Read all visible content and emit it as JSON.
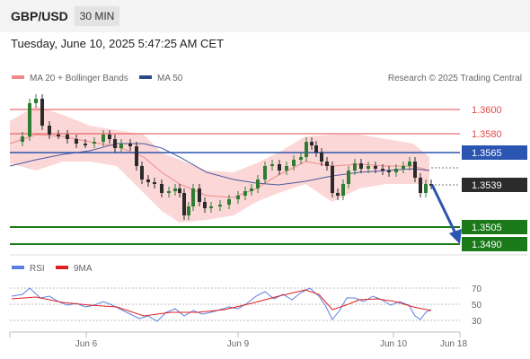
{
  "header": {
    "symbol": "GBP/USD",
    "timeframe": "30 MIN",
    "datetime": "Tuesday, June 10, 2025 5:47:25 AM CET"
  },
  "legend": {
    "ma20_bb": "MA 20 + Bollinger Bands",
    "ma50": "MA 50",
    "copyright": "Research © 2025 Trading Central"
  },
  "levels": [
    {
      "price": "1.3600",
      "kind": "resistance-thin"
    },
    {
      "price": "1.3580",
      "kind": "resistance-thin"
    },
    {
      "price": "1.3565",
      "kind": "pivot"
    },
    {
      "price": "1.3539",
      "kind": "last"
    },
    {
      "price": "1.3505",
      "kind": "support"
    },
    {
      "price": "1.3490",
      "kind": "support"
    }
  ],
  "rsi_legend": {
    "rsi": "RSI",
    "ma": "9MA"
  },
  "rsi_ticks": [
    "70",
    "50",
    "30"
  ],
  "x_labels": [
    "Jun 6",
    "Jun 9",
    "Jun 10",
    "Jun 18"
  ],
  "colors": {
    "pivot": "#2a55b0",
    "support": "#1a7a1a",
    "resistance": "#e34a4a",
    "bb_fill": "#fbd0d0",
    "rsi": "#5b7fe0",
    "rsi_ma": "#e02020",
    "candle_up": "#2e7d32",
    "candle_down": "#2b2b2b"
  }
}
